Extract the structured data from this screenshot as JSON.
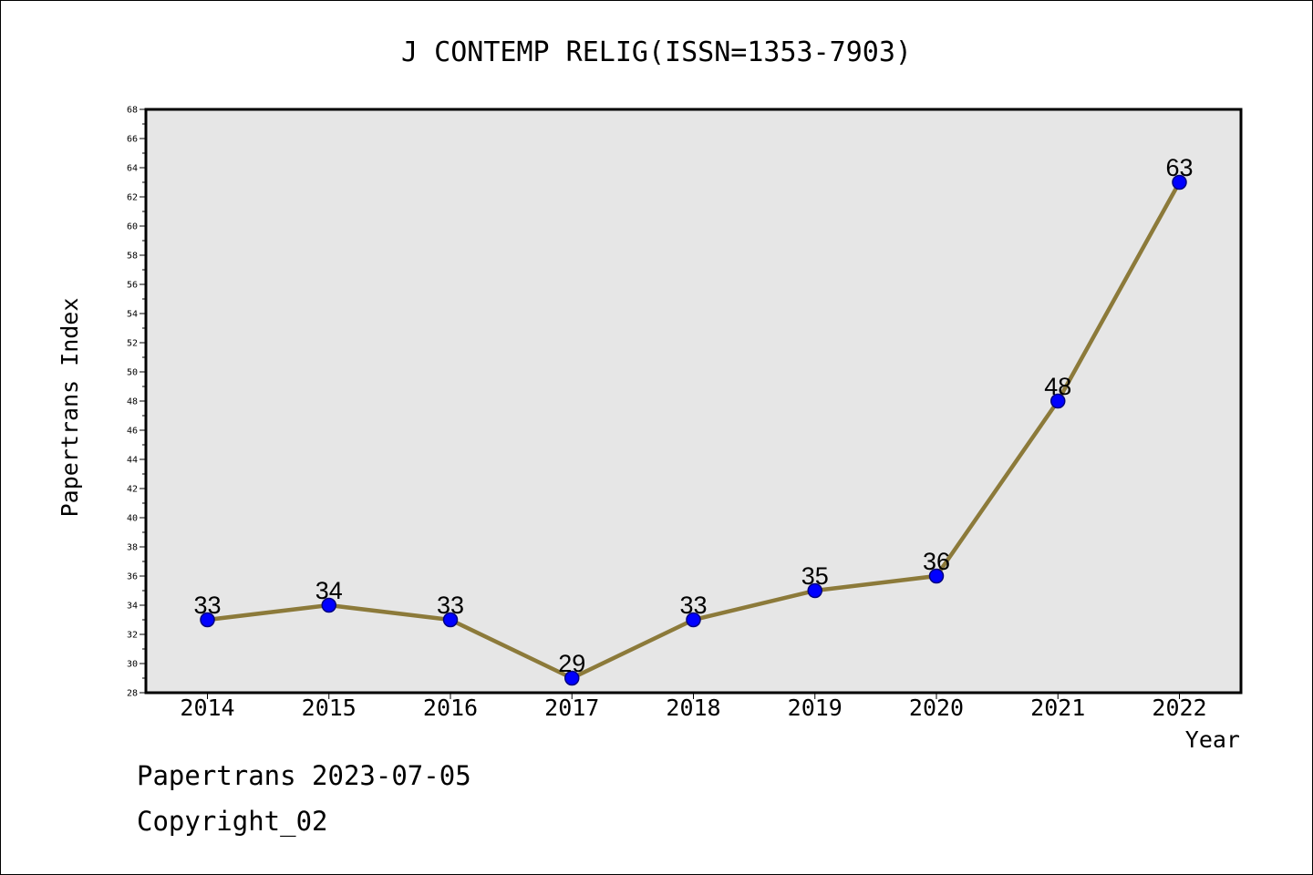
{
  "chart_data": {
    "type": "line",
    "title": "J CONTEMP RELIG(ISSN=1353-7903)",
    "xlabel": "Year",
    "ylabel": "Papertrans Index",
    "categories": [
      "2014",
      "2015",
      "2016",
      "2017",
      "2018",
      "2019",
      "2020",
      "2021",
      "2022"
    ],
    "series": [
      {
        "values": [
          33,
          34,
          33,
          29,
          33,
          35,
          36,
          48,
          63
        ]
      }
    ],
    "ylim": [
      28,
      68
    ],
    "ytick_step": 2,
    "ytick_minor_step": 1,
    "grid": false,
    "data_labels": true,
    "colors": {
      "plot_background": "#e6e6e6",
      "line": "#8c7a3a",
      "marker": "#0000ff",
      "marker_edge": "#000080"
    }
  },
  "footer": {
    "date_line": "Papertrans 2023-07-05",
    "copyright_line": "Copyright_02"
  }
}
